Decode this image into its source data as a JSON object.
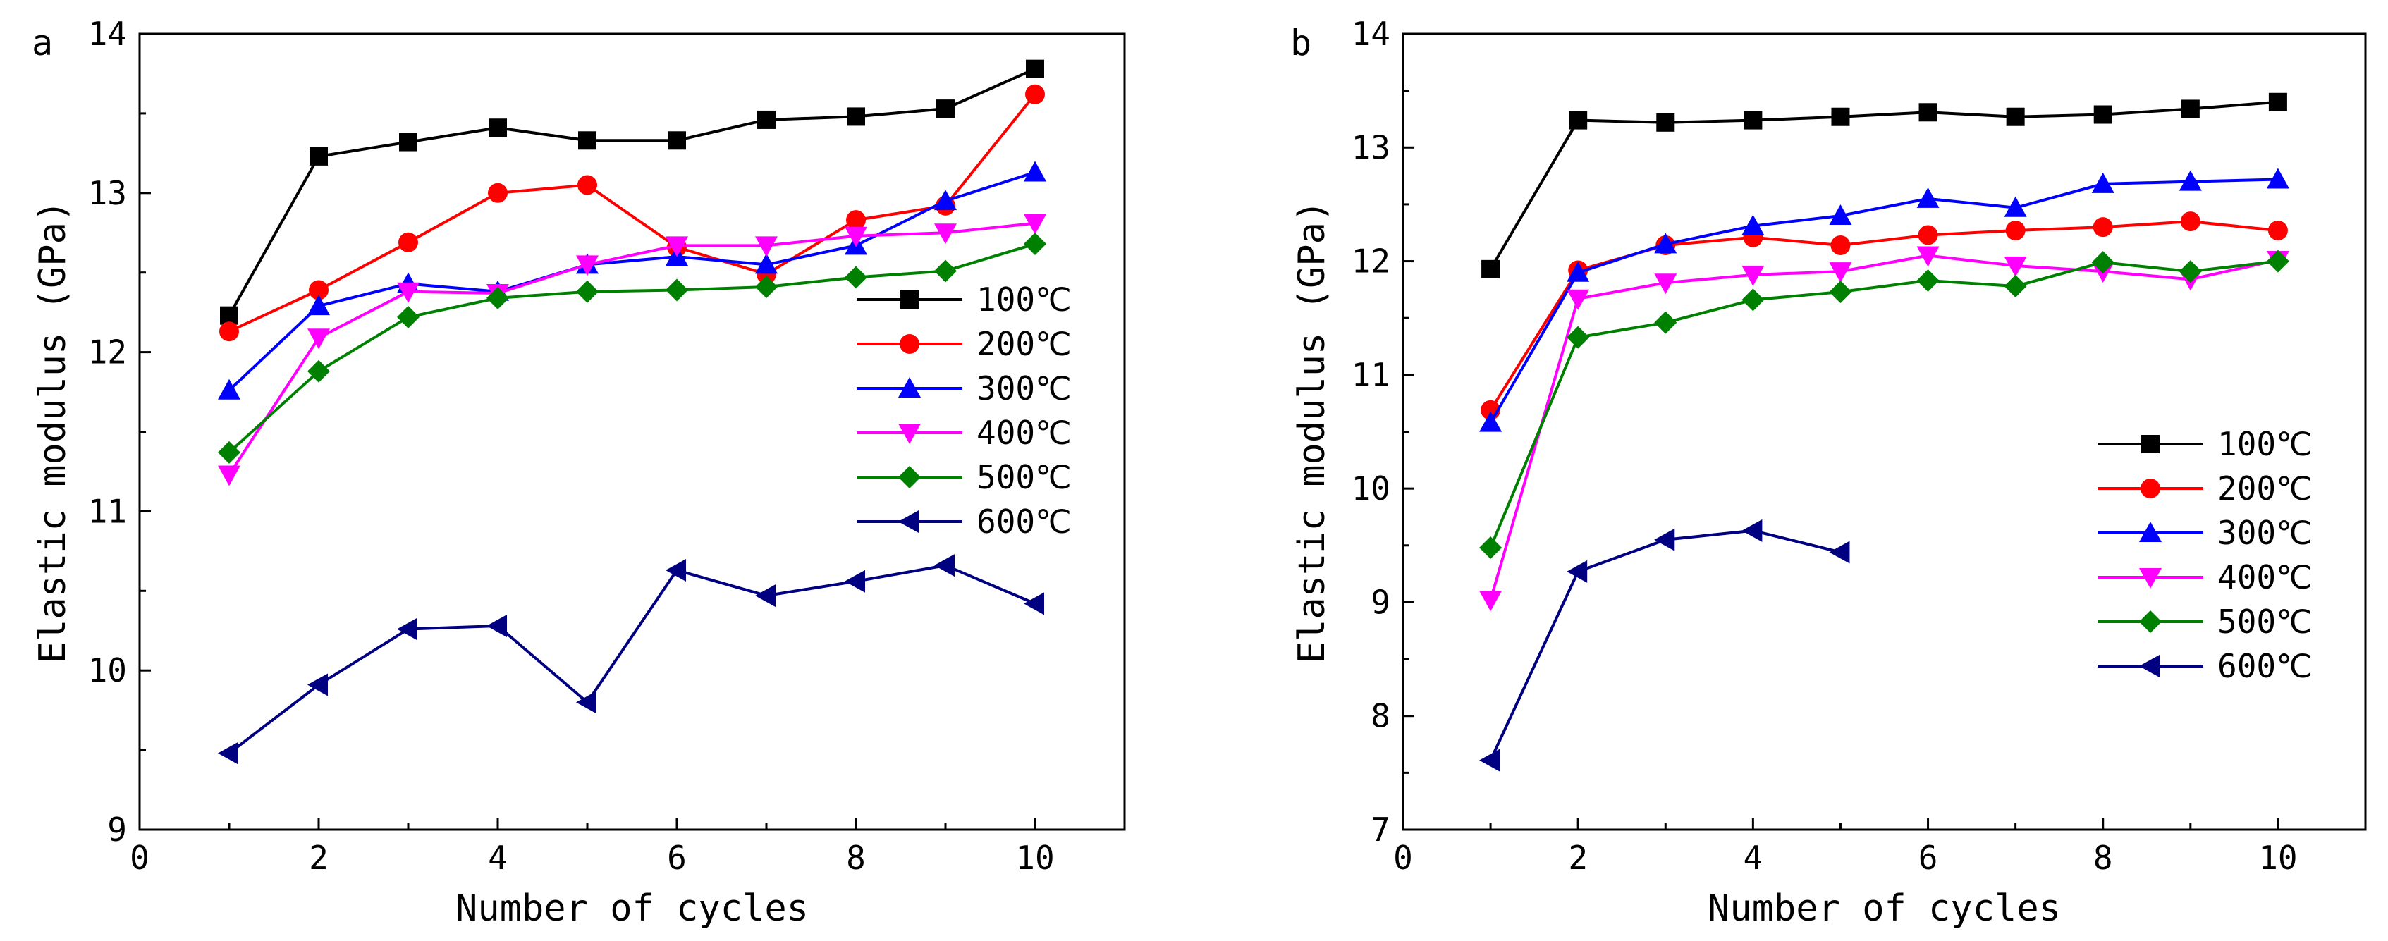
{
  "chart_data": [
    {
      "panel": "a",
      "type": "line",
      "xlabel": "Number of cycles",
      "ylabel": "Elastic modulus (GPa)",
      "xlim": [
        0,
        11
      ],
      "ylim": [
        9,
        14
      ],
      "xticks": [
        0,
        2,
        4,
        6,
        8,
        10
      ],
      "yticks": [
        9,
        10,
        11,
        12,
        13,
        14
      ],
      "legend_position": "right-middle",
      "series": [
        {
          "name": "100℃",
          "color": "#000000",
          "marker": "square",
          "x": [
            1,
            2,
            3,
            4,
            5,
            6,
            7,
            8,
            9,
            10
          ],
          "values": [
            12.23,
            13.23,
            13.32,
            13.41,
            13.33,
            13.33,
            13.46,
            13.48,
            13.53,
            13.78
          ]
        },
        {
          "name": "200℃",
          "color": "#ff0000",
          "marker": "circle",
          "x": [
            1,
            2,
            3,
            4,
            5,
            6,
            7,
            8,
            9,
            10
          ],
          "values": [
            12.13,
            12.39,
            12.69,
            13.0,
            13.05,
            12.66,
            12.49,
            12.83,
            12.92,
            13.62
          ]
        },
        {
          "name": "300℃",
          "color": "#0000ff",
          "marker": "triangle-up",
          "x": [
            1,
            2,
            3,
            4,
            5,
            6,
            7,
            8,
            9,
            10
          ],
          "values": [
            11.76,
            12.29,
            12.43,
            12.38,
            12.55,
            12.6,
            12.55,
            12.67,
            12.95,
            13.13
          ]
        },
        {
          "name": "400℃",
          "color": "#ff00ff",
          "marker": "triangle-down",
          "x": [
            1,
            2,
            3,
            4,
            5,
            6,
            7,
            8,
            9,
            10
          ],
          "values": [
            11.23,
            12.09,
            12.38,
            12.37,
            12.55,
            12.67,
            12.67,
            12.73,
            12.75,
            12.81
          ]
        },
        {
          "name": "500℃",
          "color": "#008000",
          "marker": "diamond",
          "x": [
            1,
            2,
            3,
            4,
            5,
            6,
            7,
            8,
            9,
            10
          ],
          "values": [
            11.37,
            11.88,
            12.22,
            12.34,
            12.38,
            12.39,
            12.41,
            12.47,
            12.51,
            12.68
          ]
        },
        {
          "name": "600℃",
          "color": "#000080",
          "marker": "triangle-left",
          "x": [
            1,
            2,
            3,
            4,
            5,
            6,
            7,
            8,
            9,
            10
          ],
          "values": [
            9.48,
            9.91,
            10.26,
            10.28,
            9.8,
            10.63,
            10.47,
            10.56,
            10.66,
            10.42
          ]
        }
      ]
    },
    {
      "panel": "b",
      "type": "line",
      "xlabel": "Number of cycles",
      "ylabel": "Elastic modulus (GPa)",
      "xlim": [
        0,
        11
      ],
      "ylim": [
        7,
        14
      ],
      "xticks": [
        0,
        2,
        4,
        6,
        8,
        10
      ],
      "yticks": [
        7,
        8,
        9,
        10,
        11,
        12,
        13,
        14
      ],
      "legend_position": "right-middle",
      "series": [
        {
          "name": "100℃",
          "color": "#000000",
          "marker": "square",
          "x": [
            1,
            2,
            3,
            4,
            5,
            6,
            7,
            8,
            9,
            10
          ],
          "values": [
            11.93,
            13.24,
            13.22,
            13.24,
            13.27,
            13.31,
            13.27,
            13.29,
            13.34,
            13.4
          ]
        },
        {
          "name": "200℃",
          "color": "#ff0000",
          "marker": "circle",
          "x": [
            1,
            2,
            3,
            4,
            5,
            6,
            7,
            8,
            9,
            10
          ],
          "values": [
            10.69,
            11.92,
            12.14,
            12.21,
            12.14,
            12.23,
            12.27,
            12.3,
            12.35,
            12.27
          ]
        },
        {
          "name": "300℃",
          "color": "#0000ff",
          "marker": "triangle-up",
          "x": [
            1,
            2,
            3,
            4,
            5,
            6,
            7,
            8,
            9,
            10
          ],
          "values": [
            10.58,
            11.9,
            12.15,
            12.31,
            12.4,
            12.55,
            12.47,
            12.68,
            12.7,
            12.72
          ]
        },
        {
          "name": "400℃",
          "color": "#ff00ff",
          "marker": "triangle-down",
          "x": [
            1,
            2,
            3,
            4,
            5,
            6,
            7,
            8,
            9,
            10
          ],
          "values": [
            9.02,
            11.67,
            11.81,
            11.88,
            11.91,
            12.05,
            11.96,
            11.91,
            11.84,
            12.01
          ]
        },
        {
          "name": "500℃",
          "color": "#008000",
          "marker": "diamond",
          "x": [
            1,
            2,
            3,
            4,
            5,
            6,
            7,
            8,
            9,
            10
          ],
          "values": [
            9.48,
            11.33,
            11.46,
            11.66,
            11.73,
            11.83,
            11.78,
            11.99,
            11.91,
            12.0
          ]
        },
        {
          "name": "600℃",
          "color": "#000080",
          "marker": "triangle-left",
          "x": [
            1,
            2,
            3,
            4,
            5
          ],
          "values": [
            7.61,
            9.27,
            9.55,
            9.63,
            9.44
          ]
        }
      ]
    }
  ]
}
